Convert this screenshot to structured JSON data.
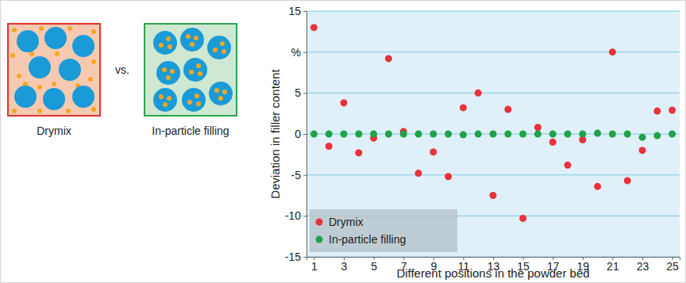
{
  "chart_data": {
    "type": "scatter",
    "xlabel": "Different positions in the powder bed",
    "ylabel": "Deviation in filler content",
    "x": [
      1,
      2,
      3,
      4,
      5,
      6,
      7,
      8,
      9,
      10,
      11,
      12,
      13,
      14,
      15,
      16,
      17,
      18,
      19,
      20,
      21,
      22,
      23,
      24,
      25
    ],
    "series": [
      {
        "name": "Drymix",
        "color": "#e8323c",
        "marker": "circle",
        "values": [
          13,
          -1.5,
          3.8,
          -2.3,
          -0.5,
          9.2,
          0.3,
          -4.8,
          -2.2,
          -5.2,
          3.2,
          5,
          -7.5,
          3,
          -10.3,
          0.8,
          -1,
          -3.8,
          -0.7,
          -6.4,
          10,
          -5.7,
          -2,
          2.8,
          2.9
        ]
      },
      {
        "name": "In-particle filling",
        "color": "#1fa34a",
        "marker": "circle",
        "values": [
          0,
          0,
          0,
          0,
          0,
          0,
          0,
          0,
          0,
          0,
          -0.1,
          0,
          0,
          0,
          0,
          0,
          0,
          0,
          0,
          0.1,
          0,
          0,
          -0.4,
          -0.2,
          0
        ]
      }
    ],
    "xlim": [
      0.5,
      25.5
    ],
    "ylim": [
      -15,
      15
    ],
    "xticks": [
      1,
      3,
      5,
      7,
      9,
      11,
      13,
      15,
      17,
      19,
      21,
      23,
      25
    ],
    "yticks": [
      -15,
      -10,
      -5,
      0,
      5,
      {
        "value": 10,
        "label": "%"
      },
      15
    ],
    "grid": true,
    "legend": "lower left"
  },
  "diagram": {
    "left_label": "Drymix",
    "middle_label": "vs.",
    "right_label": "In-particle filling"
  }
}
